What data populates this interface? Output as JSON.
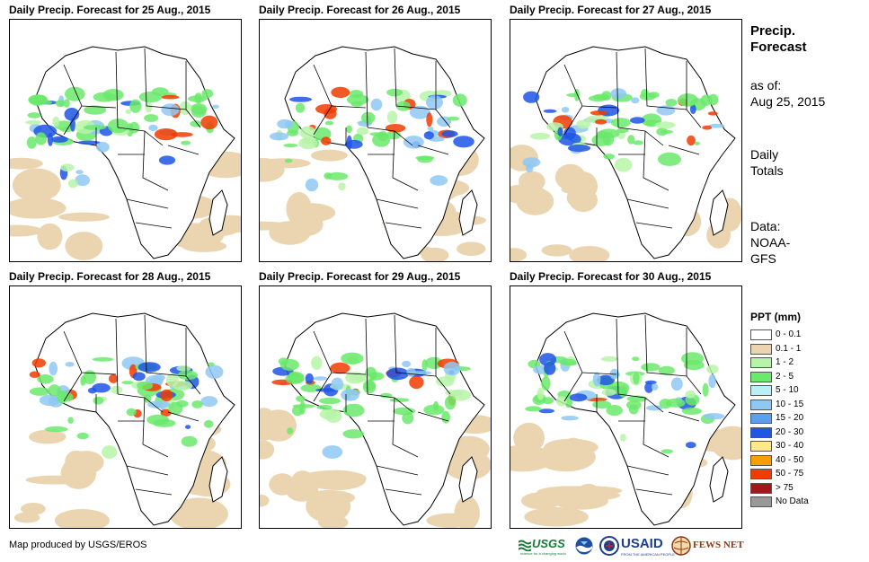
{
  "panels": [
    {
      "title": "Daily Precip. Forecast for 25 Aug., 2015"
    },
    {
      "title": "Daily Precip. Forecast for 26 Aug., 2015"
    },
    {
      "title": "Daily Precip. Forecast for 27 Aug., 2015"
    },
    {
      "title": "Daily Precip. Forecast for 28 Aug., 2015"
    },
    {
      "title": "Daily Precip. Forecast for 29 Aug., 2015"
    },
    {
      "title": "Daily Precip. Forecast for 30 Aug., 2015"
    }
  ],
  "sidebar": {
    "title_line1": "Precip.",
    "title_line2": "Forecast",
    "asof_label": "as of:",
    "asof_date": "Aug 25, 2015",
    "totals_line1": "Daily",
    "totals_line2": "Totals",
    "data_label": "Data:",
    "data_source_line1": "NOAA-",
    "data_source_line2": "GFS"
  },
  "legend": {
    "title": "PPT (mm)",
    "items": [
      {
        "label": "0 - 0.1",
        "color": "#ffffff"
      },
      {
        "label": "0.1 - 1",
        "color": "#ead5b0"
      },
      {
        "label": "1 - 2",
        "color": "#b6f5a8"
      },
      {
        "label": "2 - 5",
        "color": "#6be96b"
      },
      {
        "label": "5 - 10",
        "color": "#b8f0f5"
      },
      {
        "label": "10 - 15",
        "color": "#8fc8f5"
      },
      {
        "label": "15 - 20",
        "color": "#5a9ff0"
      },
      {
        "label": "20 - 30",
        "color": "#1f55e8"
      },
      {
        "label": "30 - 40",
        "color": "#fde98a"
      },
      {
        "label": "40 - 50",
        "color": "#f5a000"
      },
      {
        "label": "50 - 75",
        "color": "#f03c00"
      },
      {
        "label": "> 75",
        "color": "#a01818"
      },
      {
        "label": "No Data",
        "color": "#999999"
      }
    ]
  },
  "credit": "Map produced by USGS/EROS",
  "logos": {
    "usgs": "USGS",
    "usgs_tagline": "science for a changing world",
    "usaid": "USAID",
    "usaid_tagline": "FROM THE AMERICAN PEOPLE",
    "fewsnet": "FEWS NET"
  }
}
